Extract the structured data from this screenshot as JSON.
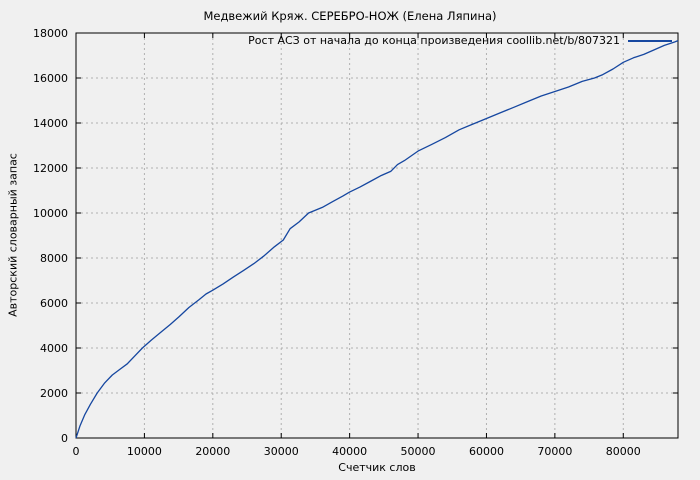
{
  "chart_data": {
    "type": "line",
    "title": "Медвежий Кряж. СЕРЕБРО-НОЖ (Елена Ляпина)",
    "xlabel": "Счетчик слов",
    "ylabel": "Авторский словарный запас",
    "legend_position": "top-right-inside",
    "grid": true,
    "xlim": [
      0,
      88000
    ],
    "ylim": [
      0,
      18000
    ],
    "xticks": [
      0,
      10000,
      20000,
      30000,
      40000,
      50000,
      60000,
      70000,
      80000
    ],
    "yticks": [
      0,
      2000,
      4000,
      6000,
      8000,
      10000,
      12000,
      14000,
      16000,
      18000
    ],
    "colors": {
      "line": "#1647a0",
      "grid": "#b0b0b0",
      "border": "#000000",
      "background": "#f0f0f0",
      "text": "#000000"
    },
    "series": [
      {
        "name": "Рост АСЗ от начала до конца произведения coollib.net/b/807321",
        "points": [
          [
            0,
            0
          ],
          [
            600,
            550
          ],
          [
            1300,
            1050
          ],
          [
            2100,
            1500
          ],
          [
            3100,
            2000
          ],
          [
            4200,
            2450
          ],
          [
            5300,
            2800
          ],
          [
            6400,
            3050
          ],
          [
            7500,
            3300
          ],
          [
            8600,
            3650
          ],
          [
            9700,
            4000
          ],
          [
            11000,
            4350
          ],
          [
            12400,
            4700
          ],
          [
            13800,
            5050
          ],
          [
            15100,
            5400
          ],
          [
            16500,
            5800
          ],
          [
            18000,
            6150
          ],
          [
            19000,
            6400
          ],
          [
            20000,
            6570
          ],
          [
            21500,
            6850
          ],
          [
            23000,
            7150
          ],
          [
            24500,
            7450
          ],
          [
            26000,
            7750
          ],
          [
            27500,
            8100
          ],
          [
            29000,
            8500
          ],
          [
            30300,
            8800
          ],
          [
            31300,
            9300
          ],
          [
            32600,
            9600
          ],
          [
            34000,
            10000
          ],
          [
            36000,
            10250
          ],
          [
            37500,
            10500
          ],
          [
            39000,
            10750
          ],
          [
            40000,
            10930
          ],
          [
            41500,
            11150
          ],
          [
            43000,
            11400
          ],
          [
            44500,
            11650
          ],
          [
            46000,
            11850
          ],
          [
            47000,
            12150
          ],
          [
            48000,
            12330
          ],
          [
            50000,
            12750
          ],
          [
            52000,
            13050
          ],
          [
            54000,
            13350
          ],
          [
            56000,
            13700
          ],
          [
            58000,
            13950
          ],
          [
            60000,
            14200
          ],
          [
            62000,
            14450
          ],
          [
            64000,
            14700
          ],
          [
            66000,
            14950
          ],
          [
            68000,
            15200
          ],
          [
            70000,
            15400
          ],
          [
            72000,
            15600
          ],
          [
            74000,
            15850
          ],
          [
            75800,
            16000
          ],
          [
            77000,
            16150
          ],
          [
            78500,
            16400
          ],
          [
            80000,
            16700
          ],
          [
            81500,
            16900
          ],
          [
            83000,
            17050
          ],
          [
            84500,
            17250
          ],
          [
            86000,
            17450
          ],
          [
            87500,
            17600
          ],
          [
            88000,
            17660
          ]
        ]
      }
    ]
  }
}
